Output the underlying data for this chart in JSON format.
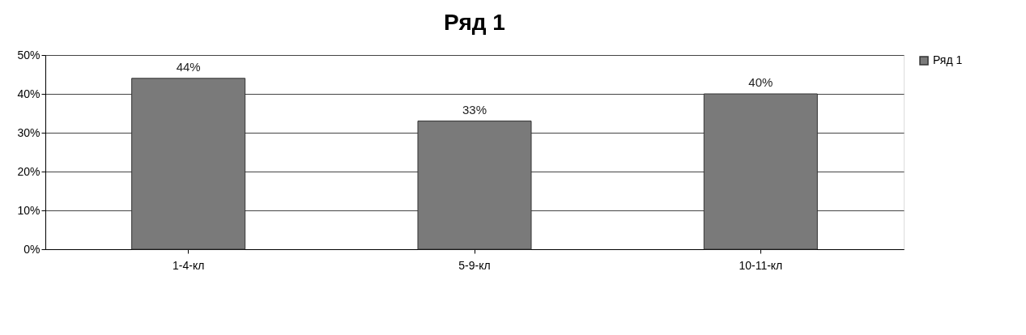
{
  "chart_data": {
    "type": "bar",
    "title": "Ряд 1",
    "categories": [
      "1-4-кл",
      "5-9-кл",
      "10-11-кл"
    ],
    "series": [
      {
        "name": "Ряд 1",
        "color": "#7a7a7a",
        "values": [
          44,
          33,
          40
        ]
      }
    ],
    "value_labels": [
      "44%",
      "33%",
      "40%"
    ],
    "ylim": [
      0,
      50
    ],
    "yticks": [
      {
        "value": 0,
        "label": "0%"
      },
      {
        "value": 10,
        "label": "10%"
      },
      {
        "value": 20,
        "label": "20%"
      },
      {
        "value": 30,
        "label": "30%"
      },
      {
        "value": 40,
        "label": "40%"
      },
      {
        "value": 50,
        "label": "50%"
      }
    ],
    "grid": "y",
    "legend": "right"
  }
}
